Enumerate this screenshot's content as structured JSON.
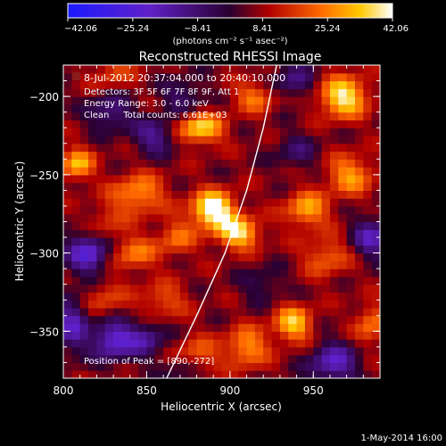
{
  "chart_data": {
    "type": "heatmap",
    "title": "Reconstructed RHESSI Image",
    "xlabel": "Heliocentric X (arcsec)",
    "ylabel": "Heliocentric Y (arcsec)",
    "xlim": [
      800,
      990
    ],
    "ylim": [
      -380,
      -180
    ],
    "x_ticks": [
      800,
      850,
      900,
      950
    ],
    "y_ticks": [
      -200,
      -250,
      -300,
      -350
    ],
    "colorbar": {
      "ticks": [
        "-42.06",
        "-25.24",
        "-8.41",
        "8.41",
        "25.24",
        "42.06"
      ],
      "range": [
        -42.06,
        42.06
      ],
      "label": "(photons cm⁻² s⁻¹ asec⁻²)"
    },
    "annotations": [
      "8-Jul-2012 20:37:04.000 to 20:40:10.000",
      "Detectors: 3F 5F 6F 7F 8F 9F, Att 1",
      "Energy Range: 3.0 - 6.0 keV",
      "Clean     Total counts: 6.61E+03",
      "Position of Peak = [890,-272]"
    ],
    "peak": {
      "x": 890,
      "y": -272
    },
    "limb_curve": [
      [
        862,
        -380
      ],
      [
        880,
        -340
      ],
      [
        897,
        -300
      ],
      [
        910,
        -260
      ],
      [
        920,
        -220
      ],
      [
        928,
        -180
      ]
    ],
    "sources": [
      {
        "x": 890,
        "y": -272,
        "amp": 42,
        "sx": 9,
        "sy": 8
      },
      {
        "x": 905,
        "y": -287,
        "amp": 32,
        "sx": 9,
        "sy": 7
      },
      {
        "x": 882,
        "y": -220,
        "amp": 30,
        "sx": 10,
        "sy": 7
      },
      {
        "x": 845,
        "y": -262,
        "amp": 22,
        "sx": 11,
        "sy": 9
      },
      {
        "x": 808,
        "y": -243,
        "amp": 26,
        "sx": 7,
        "sy": 7
      },
      {
        "x": 842,
        "y": -300,
        "amp": 18,
        "sx": 10,
        "sy": 8
      },
      {
        "x": 868,
        "y": -290,
        "amp": 16,
        "sx": 8,
        "sy": 8
      },
      {
        "x": 968,
        "y": -200,
        "amp": 34,
        "sx": 10,
        "sy": 9
      },
      {
        "x": 972,
        "y": -250,
        "amp": 22,
        "sx": 10,
        "sy": 9
      },
      {
        "x": 946,
        "y": -272,
        "amp": 24,
        "sx": 9,
        "sy": 8
      },
      {
        "x": 938,
        "y": -345,
        "amp": 28,
        "sx": 8,
        "sy": 8
      },
      {
        "x": 910,
        "y": -360,
        "amp": 22,
        "sx": 9,
        "sy": 9
      },
      {
        "x": 958,
        "y": -302,
        "amp": 16,
        "sx": 10,
        "sy": 9
      },
      {
        "x": 860,
        "y": -330,
        "amp": 14,
        "sx": 10,
        "sy": 8
      },
      {
        "x": 825,
        "y": -330,
        "amp": 12,
        "sx": 9,
        "sy": 9
      },
      {
        "x": 880,
        "y": -365,
        "amp": 16,
        "sx": 9,
        "sy": 8
      },
      {
        "x": 985,
        "y": -345,
        "amp": 18,
        "sx": 7,
        "sy": 9
      },
      {
        "x": 830,
        "y": -185,
        "amp": 12,
        "sx": 9,
        "sy": 7
      },
      {
        "x": 915,
        "y": -200,
        "amp": 18,
        "sx": 9,
        "sy": 7
      },
      {
        "x": 825,
        "y": -280,
        "amp": 10,
        "sx": 8,
        "sy": 9
      },
      {
        "x": 855,
        "y": -225,
        "amp": -20,
        "sx": 9,
        "sy": 8
      },
      {
        "x": 828,
        "y": -210,
        "amp": -18,
        "sx": 9,
        "sy": 8
      },
      {
        "x": 872,
        "y": -200,
        "amp": -14,
        "sx": 9,
        "sy": 8
      },
      {
        "x": 815,
        "y": -300,
        "amp": -30,
        "sx": 9,
        "sy": 9
      },
      {
        "x": 830,
        "y": -355,
        "amp": -30,
        "sx": 9,
        "sy": 9
      },
      {
        "x": 805,
        "y": -345,
        "amp": -24,
        "sx": 7,
        "sy": 12
      },
      {
        "x": 850,
        "y": -355,
        "amp": -18,
        "sx": 8,
        "sy": 8
      },
      {
        "x": 962,
        "y": -370,
        "amp": -26,
        "sx": 10,
        "sy": 9
      },
      {
        "x": 985,
        "y": -290,
        "amp": -24,
        "sx": 8,
        "sy": 9
      },
      {
        "x": 940,
        "y": -235,
        "amp": -12,
        "sx": 9,
        "sy": 8
      },
      {
        "x": 938,
        "y": -190,
        "amp": -16,
        "sx": 9,
        "sy": 8
      },
      {
        "x": 920,
        "y": -320,
        "amp": -10,
        "sx": 9,
        "sy": 8
      },
      {
        "x": 872,
        "y": -375,
        "amp": -10,
        "sx": 8,
        "sy": 7
      }
    ],
    "footer": "1-May-2014 16:00"
  }
}
